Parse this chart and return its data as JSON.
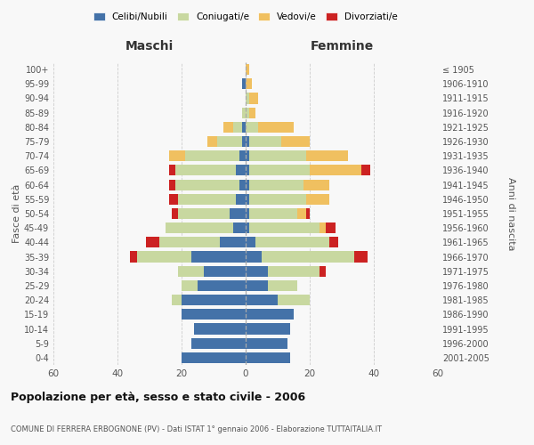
{
  "age_groups": [
    "0-4",
    "5-9",
    "10-14",
    "15-19",
    "20-24",
    "25-29",
    "30-34",
    "35-39",
    "40-44",
    "45-49",
    "50-54",
    "55-59",
    "60-64",
    "65-69",
    "70-74",
    "75-79",
    "80-84",
    "85-89",
    "90-94",
    "95-99",
    "100+"
  ],
  "birth_years": [
    "2001-2005",
    "1996-2000",
    "1991-1995",
    "1986-1990",
    "1981-1985",
    "1976-1980",
    "1971-1975",
    "1966-1970",
    "1961-1965",
    "1956-1960",
    "1951-1955",
    "1946-1950",
    "1941-1945",
    "1936-1940",
    "1931-1935",
    "1926-1930",
    "1921-1925",
    "1916-1920",
    "1911-1915",
    "1906-1910",
    "≤ 1905"
  ],
  "color_celibi": "#4472a8",
  "color_coniugati": "#c8d8a0",
  "color_vedovi": "#f0c060",
  "color_divorziati": "#cc2222",
  "maschi": {
    "celibi": [
      20,
      17,
      16,
      20,
      20,
      15,
      13,
      17,
      8,
      4,
      5,
      3,
      2,
      3,
      2,
      1,
      1,
      0,
      0,
      1,
      0
    ],
    "coniugati": [
      0,
      0,
      0,
      0,
      3,
      5,
      8,
      17,
      19,
      21,
      16,
      18,
      20,
      19,
      17,
      8,
      3,
      1,
      0,
      0,
      0
    ],
    "vedovi": [
      0,
      0,
      0,
      0,
      0,
      0,
      0,
      0,
      0,
      0,
      0,
      0,
      0,
      0,
      5,
      3,
      3,
      0,
      0,
      0,
      0
    ],
    "divorziati": [
      0,
      0,
      0,
      0,
      0,
      0,
      0,
      2,
      4,
      0,
      2,
      3,
      2,
      2,
      0,
      0,
      0,
      0,
      0,
      0,
      0
    ]
  },
  "femmine": {
    "celibi": [
      14,
      13,
      14,
      15,
      10,
      7,
      7,
      5,
      3,
      1,
      1,
      1,
      1,
      1,
      1,
      1,
      0,
      0,
      0,
      0,
      0
    ],
    "coniugati": [
      0,
      0,
      0,
      0,
      10,
      9,
      16,
      29,
      23,
      22,
      15,
      18,
      17,
      19,
      18,
      10,
      4,
      1,
      1,
      0,
      0
    ],
    "vedovi": [
      0,
      0,
      0,
      0,
      0,
      0,
      0,
      0,
      0,
      2,
      3,
      7,
      8,
      16,
      13,
      9,
      11,
      2,
      3,
      2,
      1
    ],
    "divorziati": [
      0,
      0,
      0,
      0,
      0,
      0,
      2,
      4,
      3,
      3,
      1,
      0,
      0,
      3,
      0,
      0,
      0,
      0,
      0,
      0,
      0
    ]
  },
  "title": "Popolazione per età, sesso e stato civile - 2006",
  "subtitle": "COMUNE DI FERRERA ERBOGNONE (PV) - Dati ISTAT 1° gennaio 2006 - Elaborazione TUTTAITALIA.IT",
  "xlabel_left": "Maschi",
  "xlabel_right": "Femmine",
  "ylabel_left": "Fasce di età",
  "ylabel_right": "Anni di nascita",
  "xlim": 60,
  "background_color": "#f8f8f8",
  "legend_labels": [
    "Celibi/Nubili",
    "Coniugati/e",
    "Vedovi/e",
    "Divorziati/e"
  ]
}
